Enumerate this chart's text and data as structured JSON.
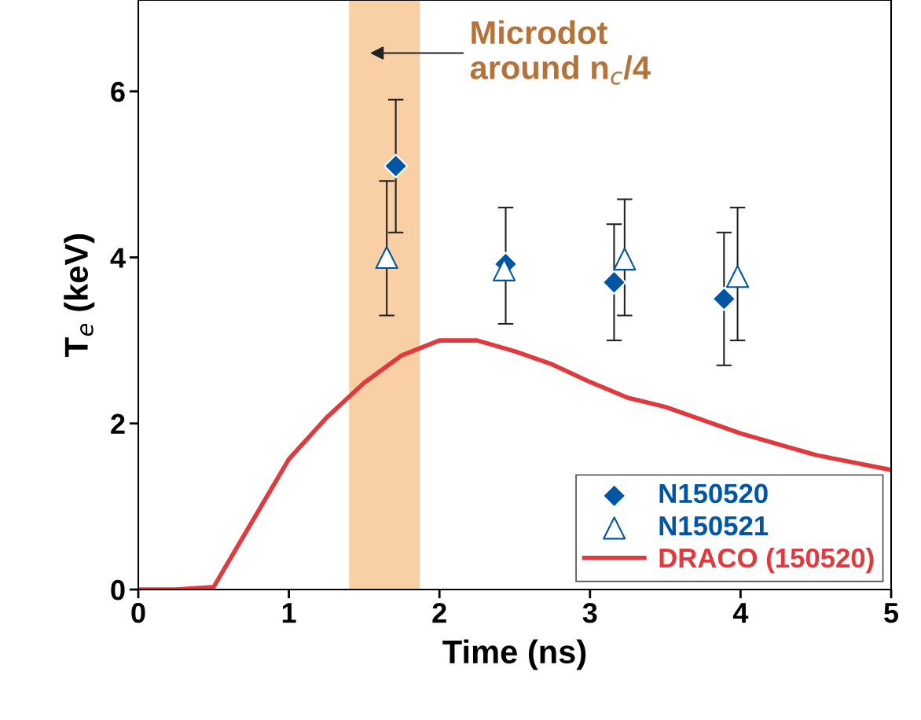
{
  "chart_data": {
    "type": "scatter",
    "xlabel": "Time (ns)",
    "ylabel": "T$_{e}$ (keV)",
    "xlim": [
      0,
      5
    ],
    "ylim": [
      0,
      7.1
    ],
    "xticks": [
      0,
      1,
      2,
      3,
      4,
      5
    ],
    "yticks": [
      0,
      2,
      4,
      6
    ],
    "grid": false,
    "legend": "bottom right",
    "series": [
      {
        "name": "N150520",
        "marker": "diamond",
        "color": "#0055a5",
        "x": [
          1.71,
          2.44,
          3.16,
          3.89
        ],
        "values": [
          5.1,
          3.92,
          3.7,
          3.5
        ],
        "errors": [
          [
            4.3,
            5.9
          ],
          [
            3.2,
            4.6
          ],
          [
            3.0,
            4.4
          ],
          [
            2.7,
            4.3
          ]
        ]
      },
      {
        "name": "N150521",
        "marker": "triangle",
        "color": "#0055a5",
        "x": [
          1.65,
          2.43,
          3.23,
          3.98
        ],
        "values": [
          4.0,
          3.85,
          3.98,
          3.77
        ],
        "errors": [
          [
            3.3,
            4.92
          ],
          null,
          [
            3.3,
            4.7
          ],
          [
            3.0,
            4.6
          ]
        ]
      },
      {
        "name": "DRACO (150520)",
        "type": "line",
        "marker": "none",
        "line_style": "solid",
        "color": "#e0393e",
        "x": [
          0,
          0.25,
          0.5,
          0.75,
          1,
          1.25,
          1.5,
          1.75,
          2,
          2.25,
          2.5,
          2.75,
          3,
          3.25,
          3.5,
          4,
          4.5,
          5
        ],
        "values": [
          0,
          0,
          0.03,
          0.8,
          1.57,
          2.07,
          2.49,
          2.82,
          3.0,
          3.0,
          2.87,
          2.71,
          2.5,
          2.31,
          2.2,
          1.88,
          1.62,
          1.44
        ]
      }
    ],
    "bands": [
      {
        "axis": "x",
        "from": 1.4,
        "to": 1.87,
        "label": null,
        "color": "#f9cfa5"
      }
    ],
    "annotations": [
      "Microdot\naround n$_{c}$/4"
    ]
  }
}
